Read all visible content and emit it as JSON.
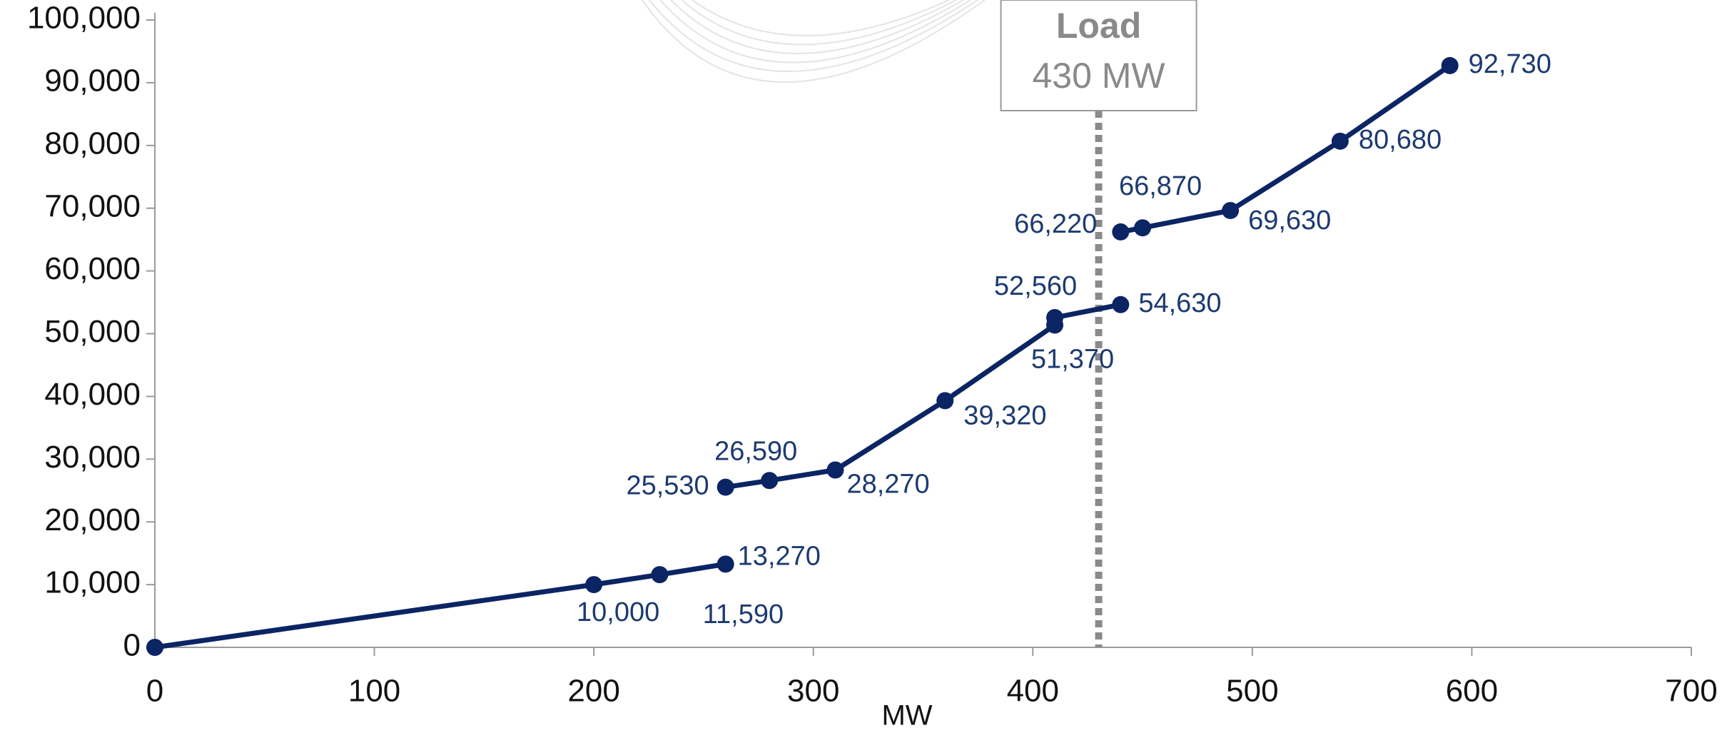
{
  "chart_data": {
    "type": "line",
    "x_label": "MW",
    "x": [
      0,
      200,
      230,
      260,
      null,
      260,
      280,
      310,
      360,
      410,
      410,
      440,
      null,
      440,
      450,
      490,
      540,
      590
    ],
    "series": [
      {
        "color": "#0b2463",
        "values": [
          0,
          10000,
          11590,
          13270,
          null,
          25530,
          26590,
          28270,
          39320,
          51370,
          52560,
          54630,
          null,
          66220,
          66870,
          69630,
          80680,
          92730
        ],
        "value_labels": [
          null,
          "10,000",
          "11,590",
          "13,270",
          null,
          "25,530",
          "26,590",
          "28,270",
          "39,320",
          "51,370",
          "52,560",
          "54,630",
          null,
          "66,220",
          "66,870",
          "69,630",
          "80,680",
          "92,730"
        ]
      }
    ],
    "xlim": [
      0,
      700
    ],
    "xticks": [
      0,
      100,
      200,
      300,
      400,
      500,
      600,
      700
    ],
    "ylim": [
      0,
      100000
    ],
    "yticks": [
      0,
      {
        "value": 10000,
        "label": "10,000"
      },
      {
        "value": 20000,
        "label": "20,000"
      },
      {
        "value": 30000,
        "label": "30,000"
      },
      {
        "value": 40000,
        "label": "40,000"
      },
      {
        "value": 50000,
        "label": "50,000"
      },
      {
        "value": 60000,
        "label": "60,000"
      },
      {
        "value": 70000,
        "label": "70,000"
      },
      {
        "value": 80000,
        "label": "80,000"
      },
      {
        "value": 90000,
        "label": "90,000"
      },
      {
        "value": 100000,
        "label": "100,000"
      }
    ],
    "grid": false,
    "annotations": [
      {
        "x": 430,
        "title": "Load",
        "label": "430 MW",
        "color": "#8a8a8a"
      }
    ]
  }
}
